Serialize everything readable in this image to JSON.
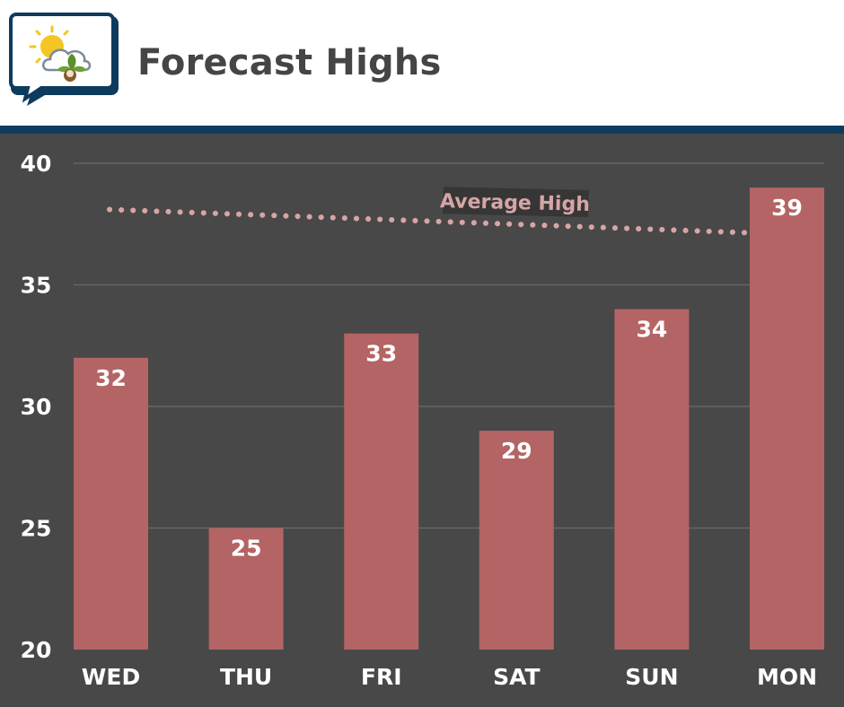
{
  "header": {
    "title": "Forecast Highs",
    "logo_icon": "weather-leaf-chat-logo"
  },
  "colors": {
    "background": "#484848",
    "bar": "#b46464",
    "grid": "#6a6a6a",
    "average_line": "#d7a5a5",
    "header_rule": "#0d3b5e",
    "title": "#454545"
  },
  "chart_data": {
    "type": "bar",
    "title": "Forecast Highs",
    "categories": [
      "WED",
      "THU",
      "FRI",
      "SAT",
      "SUN",
      "MON"
    ],
    "values": [
      32,
      25,
      33,
      29,
      34,
      39
    ],
    "data_labels": [
      "32",
      "25",
      "33",
      "29",
      "34",
      "39"
    ],
    "ylim": [
      20,
      40
    ],
    "yticks": [
      20,
      25,
      30,
      35,
      40
    ],
    "ytick_labels": [
      "20",
      "25",
      "30",
      "35",
      "40"
    ],
    "xlabel": "",
    "ylabel": "",
    "grid": true,
    "annotations": [
      {
        "text": "Average High",
        "type": "dotted-line",
        "start_value": 38.1,
        "end_value": 37.1
      }
    ]
  }
}
